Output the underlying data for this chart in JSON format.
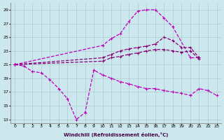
{
  "xlabel": "Windchill (Refroidissement éolien,°C)",
  "xlim": [
    -0.5,
    23.5
  ],
  "ylim": [
    12.5,
    30
  ],
  "yticks": [
    13,
    15,
    17,
    19,
    21,
    23,
    25,
    27,
    29
  ],
  "xticks": [
    0,
    1,
    2,
    3,
    4,
    5,
    6,
    7,
    8,
    9,
    10,
    11,
    12,
    13,
    14,
    15,
    16,
    17,
    18,
    19,
    20,
    21,
    22,
    23
  ],
  "bg_color": "#cce8ee",
  "grid_color": "#aacccc",
  "lc1": "#bb00bb",
  "lc2": "#880077",
  "curve_top_x": [
    0,
    10,
    11,
    12,
    13,
    14,
    15,
    16,
    17,
    18,
    20,
    21
  ],
  "curve_top_y": [
    21.0,
    23.8,
    24.8,
    25.5,
    27.3,
    28.8,
    29.0,
    29.0,
    27.8,
    26.5,
    22.0,
    22.0
  ],
  "curve_flat1_x": [
    0,
    10,
    11,
    12,
    13,
    14,
    15,
    16,
    17,
    18,
    19,
    20,
    21
  ],
  "curve_flat1_y": [
    21.0,
    22.0,
    22.5,
    23.0,
    23.3,
    23.5,
    23.7,
    24.0,
    25.0,
    24.5,
    23.5,
    23.5,
    22.0
  ],
  "curve_flat2_x": [
    0,
    10,
    11,
    12,
    13,
    14,
    15,
    16,
    17,
    18,
    19,
    20,
    21
  ],
  "curve_flat2_y": [
    21.0,
    21.5,
    22.0,
    22.2,
    22.5,
    22.7,
    23.0,
    23.2,
    23.2,
    23.0,
    22.8,
    23.0,
    21.8
  ],
  "curve_bot_x": [
    0,
    1,
    2,
    3,
    4,
    5,
    6,
    7,
    8,
    9,
    10,
    11,
    12,
    13,
    14,
    15,
    16,
    17,
    18,
    19,
    20,
    21,
    22,
    23
  ],
  "curve_bot_y": [
    21.0,
    20.8,
    20.0,
    19.8,
    18.8,
    17.5,
    16.0,
    13.0,
    14.0,
    20.2,
    19.5,
    19.0,
    18.5,
    18.2,
    17.8,
    17.5,
    17.5,
    17.2,
    17.0,
    16.8,
    16.5,
    17.5,
    17.2,
    16.5
  ]
}
